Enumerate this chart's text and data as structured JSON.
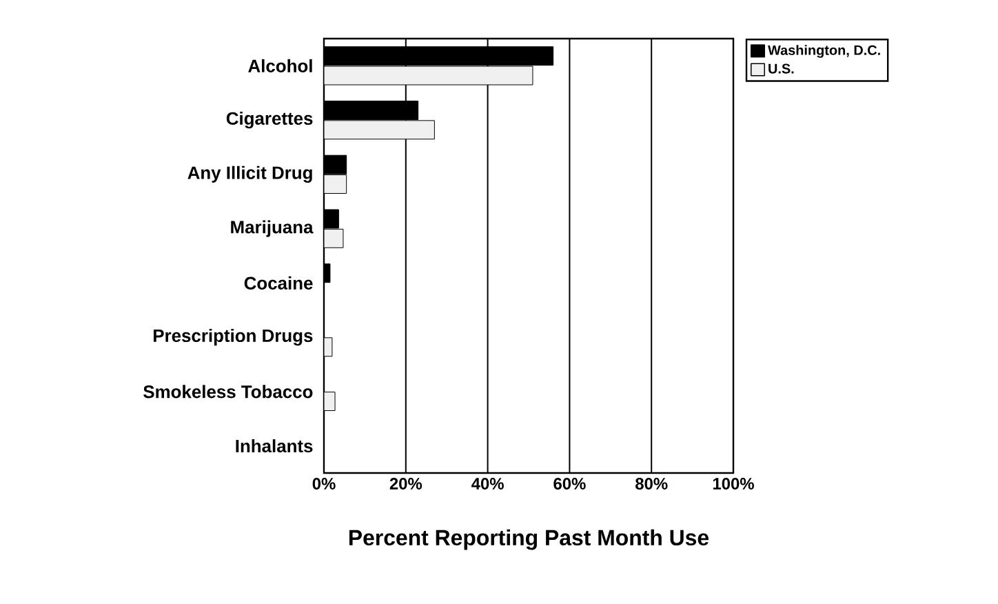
{
  "chart_data": {
    "type": "bar",
    "orientation": "horizontal",
    "xlabel": "Percent Reporting Past Month Use",
    "categories": [
      "Alcohol",
      "Cigarettes",
      "Any Illicit Drug",
      "Marijuana",
      "Cocaine",
      "Prescription Drugs",
      "Smokeless Tobacco",
      "Inhalants"
    ],
    "series": [
      {
        "name": "Washington, D.C.",
        "color": "#000000",
        "values": [
          56,
          23,
          5.5,
          3.6,
          1.5,
          null,
          null,
          null
        ]
      },
      {
        "name": "U.S.",
        "color": "#f0f0f0",
        "values": [
          51,
          27,
          5.5,
          4.7,
          null,
          2,
          2.7,
          null
        ]
      }
    ],
    "xlim": [
      0,
      100
    ],
    "xticks": [
      {
        "value": 0,
        "label": "0%"
      },
      {
        "value": 20,
        "label": "20%"
      },
      {
        "value": 40,
        "label": "40%"
      },
      {
        "value": 60,
        "label": "60%"
      },
      {
        "value": 80,
        "label": "80%"
      },
      {
        "value": 100,
        "label": "100%"
      }
    ],
    "grid": "x",
    "legend": "top right"
  }
}
